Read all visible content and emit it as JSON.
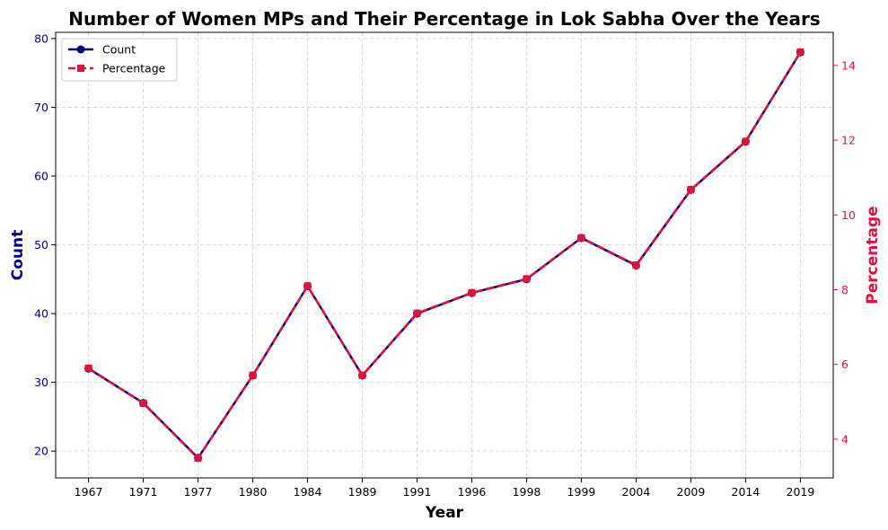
{
  "chart_data": {
    "type": "line",
    "title": "Number of Women MPs and Their Percentage in Lok Sabha Over the Years",
    "xlabel": "Year",
    "ylabel_left": "Count",
    "ylabel_right": "Percentage",
    "categories": [
      "1967",
      "1971",
      "1977",
      "1980",
      "1984",
      "1989",
      "1991",
      "1996",
      "1998",
      "1999",
      "2004",
      "2009",
      "2014",
      "2019"
    ],
    "series": [
      {
        "name": "Count",
        "axis": "left",
        "color": "#000080",
        "marker": "circle",
        "line_style": "solid",
        "values": [
          32,
          27,
          19,
          31,
          44,
          31,
          40,
          43,
          45,
          51,
          47,
          58,
          65,
          78
        ]
      },
      {
        "name": "Percentage",
        "axis": "right",
        "color": "#dc143c",
        "marker": "square",
        "line_style": "dashed",
        "values": [
          5.9,
          4.96,
          3.49,
          5.71,
          8.1,
          5.71,
          7.37,
          7.92,
          8.29,
          9.39,
          8.66,
          10.68,
          11.97,
          14.36
        ]
      }
    ],
    "ylim_left": [
      16.1,
      80.9
    ],
    "yticks_left": [
      20,
      30,
      40,
      50,
      60,
      70,
      80
    ],
    "ylim_right": [
      2.963,
      14.887
    ],
    "yticks_right": [
      4,
      6,
      8,
      10,
      12,
      14
    ],
    "grid": true,
    "legend_position": "top-left"
  }
}
